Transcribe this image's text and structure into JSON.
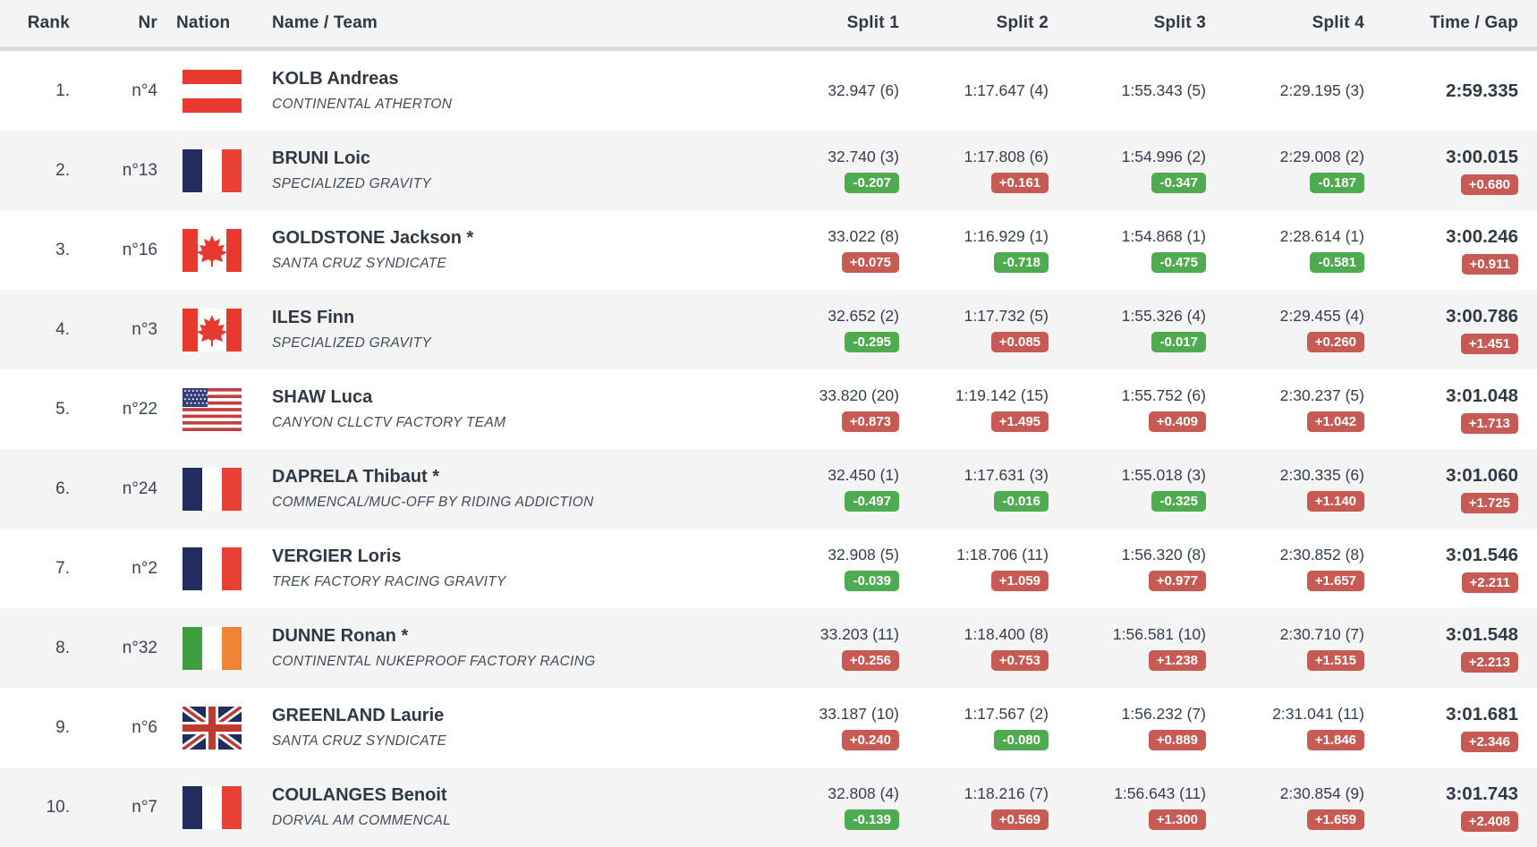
{
  "header": {
    "rank": "Rank",
    "nr": "Nr",
    "nation": "Nation",
    "name_team": "Name / Team",
    "split1": "Split 1",
    "split2": "Split 2",
    "split3": "Split 3",
    "split4": "Split 4",
    "time_gap": "Time / Gap"
  },
  "colors": {
    "gap_faster_bg": "#4fab4f",
    "gap_slower_bg": "#c75b54",
    "gap_text": "#ffffff",
    "row_stripe": "#f4f4f5",
    "header_bg": "#f4f4f4",
    "divider": "#dcdcdc"
  },
  "rows": [
    {
      "rank": "1.",
      "nr": "n°4",
      "nation": "AUT",
      "name": "KOLB Andreas",
      "team": "CONTINENTAL ATHERTON",
      "splits": [
        {
          "value": "32.947 (6)",
          "gap": null
        },
        {
          "value": "1:17.647 (4)",
          "gap": null
        },
        {
          "value": "1:55.343 (5)",
          "gap": null
        },
        {
          "value": "2:29.195 (3)",
          "gap": null
        }
      ],
      "time": "2:59.335",
      "time_gap": null
    },
    {
      "rank": "2.",
      "nr": "n°13",
      "nation": "FRA",
      "name": "BRUNI Loic",
      "team": "SPECIALIZED GRAVITY",
      "splits": [
        {
          "value": "32.740 (3)",
          "gap": "-0.207"
        },
        {
          "value": "1:17.808 (6)",
          "gap": "+0.161"
        },
        {
          "value": "1:54.996 (2)",
          "gap": "-0.347"
        },
        {
          "value": "2:29.008 (2)",
          "gap": "-0.187"
        }
      ],
      "time": "3:00.015",
      "time_gap": "+0.680"
    },
    {
      "rank": "3.",
      "nr": "n°16",
      "nation": "CAN",
      "name": "GOLDSTONE Jackson *",
      "team": "SANTA CRUZ SYNDICATE",
      "splits": [
        {
          "value": "33.022 (8)",
          "gap": "+0.075"
        },
        {
          "value": "1:16.929 (1)",
          "gap": "-0.718"
        },
        {
          "value": "1:54.868 (1)",
          "gap": "-0.475"
        },
        {
          "value": "2:28.614 (1)",
          "gap": "-0.581"
        }
      ],
      "time": "3:00.246",
      "time_gap": "+0.911"
    },
    {
      "rank": "4.",
      "nr": "n°3",
      "nation": "CAN",
      "name": "ILES Finn",
      "team": "SPECIALIZED GRAVITY",
      "splits": [
        {
          "value": "32.652 (2)",
          "gap": "-0.295"
        },
        {
          "value": "1:17.732 (5)",
          "gap": "+0.085"
        },
        {
          "value": "1:55.326 (4)",
          "gap": "-0.017"
        },
        {
          "value": "2:29.455 (4)",
          "gap": "+0.260"
        }
      ],
      "time": "3:00.786",
      "time_gap": "+1.451"
    },
    {
      "rank": "5.",
      "nr": "n°22",
      "nation": "USA",
      "name": "SHAW Luca",
      "team": "CANYON CLLCTV FACTORY TEAM",
      "splits": [
        {
          "value": "33.820 (20)",
          "gap": "+0.873"
        },
        {
          "value": "1:19.142 (15)",
          "gap": "+1.495"
        },
        {
          "value": "1:55.752 (6)",
          "gap": "+0.409"
        },
        {
          "value": "2:30.237 (5)",
          "gap": "+1.042"
        }
      ],
      "time": "3:01.048",
      "time_gap": "+1.713"
    },
    {
      "rank": "6.",
      "nr": "n°24",
      "nation": "FRA",
      "name": "DAPRELA Thibaut *",
      "team": "COMMENCAL/MUC-OFF BY RIDING ADDICTION",
      "splits": [
        {
          "value": "32.450 (1)",
          "gap": "-0.497"
        },
        {
          "value": "1:17.631 (3)",
          "gap": "-0.016"
        },
        {
          "value": "1:55.018 (3)",
          "gap": "-0.325"
        },
        {
          "value": "2:30.335 (6)",
          "gap": "+1.140"
        }
      ],
      "time": "3:01.060",
      "time_gap": "+1.725"
    },
    {
      "rank": "7.",
      "nr": "n°2",
      "nation": "FRA",
      "name": "VERGIER Loris",
      "team": "TREK FACTORY RACING GRAVITY",
      "splits": [
        {
          "value": "32.908 (5)",
          "gap": "-0.039"
        },
        {
          "value": "1:18.706 (11)",
          "gap": "+1.059"
        },
        {
          "value": "1:56.320 (8)",
          "gap": "+0.977"
        },
        {
          "value": "2:30.852 (8)",
          "gap": "+1.657"
        }
      ],
      "time": "3:01.546",
      "time_gap": "+2.211"
    },
    {
      "rank": "8.",
      "nr": "n°32",
      "nation": "IRL",
      "name": "DUNNE Ronan *",
      "team": "CONTINENTAL NUKEPROOF FACTORY RACING",
      "splits": [
        {
          "value": "33.203 (11)",
          "gap": "+0.256"
        },
        {
          "value": "1:18.400 (8)",
          "gap": "+0.753"
        },
        {
          "value": "1:56.581 (10)",
          "gap": "+1.238"
        },
        {
          "value": "2:30.710 (7)",
          "gap": "+1.515"
        }
      ],
      "time": "3:01.548",
      "time_gap": "+2.213"
    },
    {
      "rank": "9.",
      "nr": "n°6",
      "nation": "GBR",
      "name": "GREENLAND Laurie",
      "team": "SANTA CRUZ SYNDICATE",
      "splits": [
        {
          "value": "33.187 (10)",
          "gap": "+0.240"
        },
        {
          "value": "1:17.567 (2)",
          "gap": "-0.080"
        },
        {
          "value": "1:56.232 (7)",
          "gap": "+0.889"
        },
        {
          "value": "2:31.041 (11)",
          "gap": "+1.846"
        }
      ],
      "time": "3:01.681",
      "time_gap": "+2.346"
    },
    {
      "rank": "10.",
      "nr": "n°7",
      "nation": "FRA",
      "name": "COULANGES Benoit",
      "team": "DORVAL AM COMMENCAL",
      "splits": [
        {
          "value": "32.808 (4)",
          "gap": "-0.139"
        },
        {
          "value": "1:18.216 (7)",
          "gap": "+0.569"
        },
        {
          "value": "1:56.643 (11)",
          "gap": "+1.300"
        },
        {
          "value": "2:30.854 (9)",
          "gap": "+1.659"
        }
      ],
      "time": "3:01.743",
      "time_gap": "+2.408"
    }
  ]
}
